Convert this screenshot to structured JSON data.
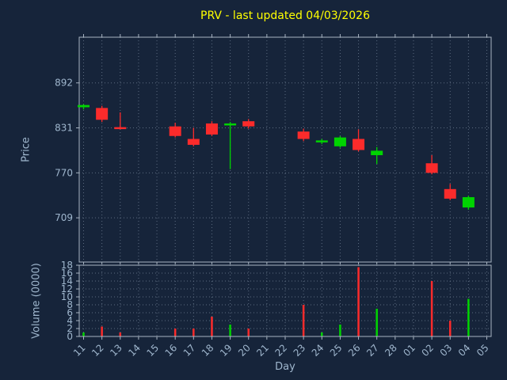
{
  "window": {
    "background": "#16243a"
  },
  "chart_data": {
    "type": "candlestick",
    "title": "PRV - last updated 04/03/2026",
    "xlabel": "Day",
    "ylabel_price": "Price",
    "ylabel_volume": "Volume (0000)",
    "legend": "none",
    "grid": "dotted",
    "colors": {
      "up": "#00d400",
      "down": "#fb2b2b",
      "grid": "#5c6b80",
      "spine": "#a8b4c2",
      "tick_label": "#9fb6cd",
      "axis_label": "#9fb6cd",
      "title": "#ffff00",
      "background": "#16243a"
    },
    "x_ticklabels": [
      "11",
      "12",
      "13",
      "14",
      "15",
      "16",
      "17",
      "18",
      "19",
      "20",
      "21",
      "22",
      "23",
      "24",
      "25",
      "26",
      "27",
      "28",
      "01",
      "02",
      "03",
      "04",
      "05"
    ],
    "price_ticks": [
      892,
      831,
      770,
      709
    ],
    "price_range": [
      649,
      954
    ],
    "volume_ticks": [
      0,
      2,
      4,
      6,
      8,
      10,
      12,
      14,
      16,
      18
    ],
    "volume_range": [
      0,
      18
    ],
    "candles": [
      {
        "day": "11",
        "open": 859,
        "high": 863,
        "low": 856,
        "close": 862,
        "volume": 1
      },
      {
        "day": "12",
        "open": 858,
        "high": 861,
        "low": 839,
        "close": 842,
        "volume": 2.5
      },
      {
        "day": "13",
        "open": 832,
        "high": 852,
        "low": 829,
        "close": 830,
        "volume": 1
      },
      {
        "day": "16",
        "open": 833,
        "high": 838,
        "low": 818,
        "close": 820,
        "volume": 2
      },
      {
        "day": "17",
        "open": 816,
        "high": 831,
        "low": 806,
        "close": 808,
        "volume": 2
      },
      {
        "day": "18",
        "open": 837,
        "high": 840,
        "low": 820,
        "close": 822,
        "volume": 5
      },
      {
        "day": "19",
        "open": 835,
        "high": 839,
        "low": 775,
        "close": 837,
        "volume": 3
      },
      {
        "day": "20",
        "open": 840,
        "high": 843,
        "low": 830,
        "close": 833,
        "volume": 2
      },
      {
        "day": "23",
        "open": 826,
        "high": 830,
        "low": 813,
        "close": 816,
        "volume": 8
      },
      {
        "day": "24",
        "open": 812,
        "high": 816,
        "low": 809,
        "close": 814,
        "volume": 1
      },
      {
        "day": "25",
        "open": 806,
        "high": 820,
        "low": 804,
        "close": 818,
        "volume": 3
      },
      {
        "day": "26",
        "open": 816,
        "high": 829,
        "low": 799,
        "close": 801,
        "volume": 17.5
      },
      {
        "day": "27",
        "open": 794,
        "high": 805,
        "low": 782,
        "close": 800,
        "volume": 7
      },
      {
        "day": "02",
        "open": 783,
        "high": 794,
        "low": 768,
        "close": 770,
        "volume": 14
      },
      {
        "day": "03",
        "open": 748,
        "high": 755,
        "low": 733,
        "close": 735,
        "volume": 4
      },
      {
        "day": "04",
        "open": 723,
        "high": 739,
        "low": 720,
        "close": 737,
        "volume": 9.5
      }
    ]
  }
}
